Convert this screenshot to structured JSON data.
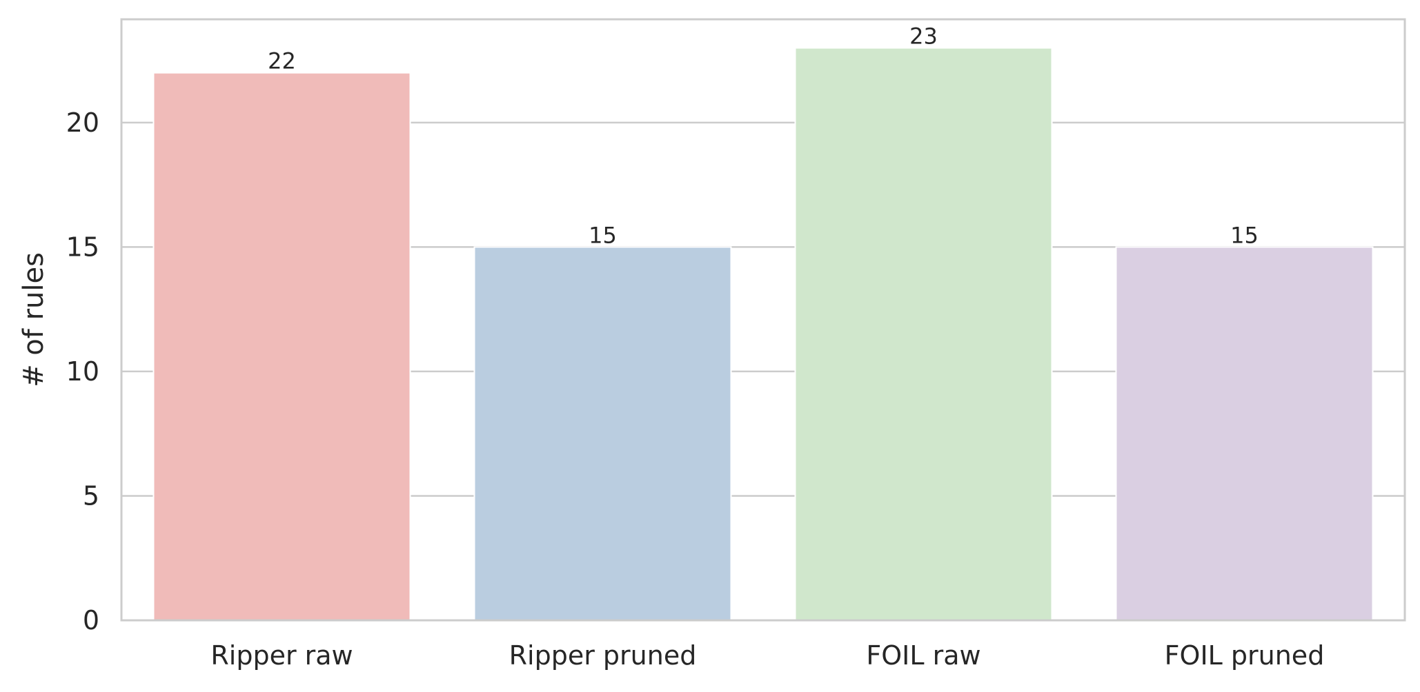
{
  "chart_data": {
    "type": "bar",
    "categories": [
      "Ripper raw",
      "Ripper pruned",
      "FOIL raw",
      "FOIL pruned"
    ],
    "values": [
      22,
      15,
      23,
      15
    ],
    "data_labels": [
      "22",
      "15",
      "23",
      "15"
    ],
    "colors": [
      "#f0bbb9",
      "#bacde0",
      "#d0e7cc",
      "#dacfe2"
    ],
    "title": "",
    "xlabel": "",
    "ylabel": "# of rules",
    "ylim": [
      0,
      24.15
    ],
    "yticks": [
      0,
      5,
      10,
      15,
      20
    ],
    "ytick_labels": [
      "0",
      "5",
      "10",
      "15",
      "20"
    ],
    "grid": "horizontal",
    "grid_color": "#cccccc",
    "spine_color": "#cccccc"
  }
}
